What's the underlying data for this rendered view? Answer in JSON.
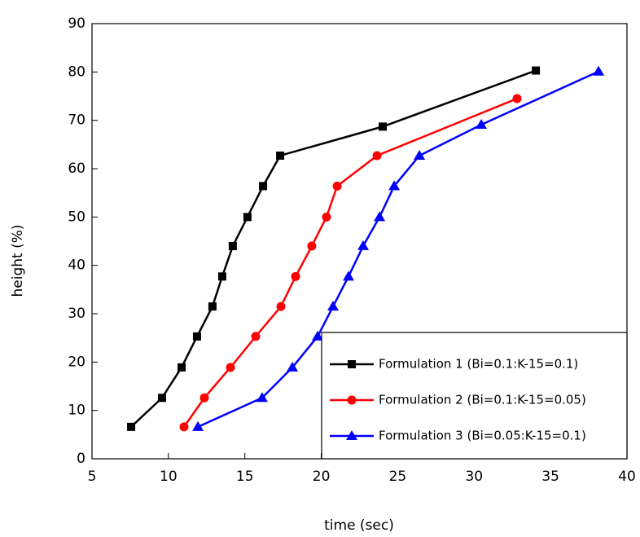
{
  "chart_data": {
    "type": "line",
    "x_label": "time (sec)",
    "y_label": "height (%)",
    "xlim": [
      5,
      40
    ],
    "xticks": [
      5,
      10,
      15,
      20,
      25,
      30,
      35,
      40
    ],
    "ylim": [
      0,
      90
    ],
    "yticks": [
      0,
      10,
      20,
      30,
      40,
      50,
      60,
      70,
      80,
      90
    ],
    "legend": "lower right",
    "series": [
      {
        "name": "Formulation 1 (Bi=0.1:K-15=0.1)",
        "color": "#000000",
        "marker": "square",
        "x": [
          7.56,
          9.58,
          10.86,
          11.87,
          12.88,
          13.52,
          14.21,
          15.17,
          16.19,
          17.31,
          24.02,
          34.04
        ],
        "values": [
          6.6,
          12.6,
          18.9,
          25.3,
          31.5,
          37.7,
          44.0,
          50.0,
          56.4,
          62.7,
          68.7,
          80.3
        ]
      },
      {
        "name": "Formulation 2 (Bi=0.1:K-15=0.05)",
        "color": "#ff0000",
        "marker": "circle",
        "x": [
          11.02,
          12.35,
          14.06,
          15.71,
          17.36,
          18.32,
          19.38,
          20.34,
          21.04,
          23.65,
          32.81
        ],
        "values": [
          6.6,
          12.6,
          18.9,
          25.3,
          31.5,
          37.7,
          44.0,
          50.0,
          56.4,
          62.7,
          74.5
        ]
      },
      {
        "name": "Formulation 3 (Bi=0.05:K-15=0.1)",
        "color": "#0000ff",
        "marker": "triangle",
        "x": [
          11.93,
          16.13,
          18.11,
          19.76,
          20.77,
          21.78,
          22.74,
          23.81,
          24.77,
          26.42,
          30.47,
          38.14
        ],
        "values": [
          6.6,
          12.6,
          18.9,
          25.3,
          31.5,
          37.7,
          44.0,
          50.0,
          56.4,
          62.7,
          69.1,
          80.1
        ]
      }
    ]
  }
}
